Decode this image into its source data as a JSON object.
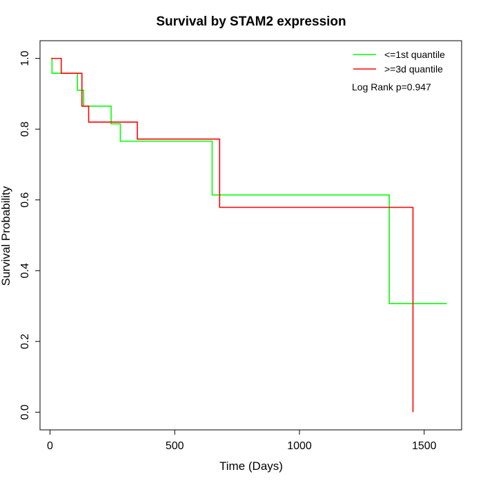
{
  "chart_data": {
    "type": "line",
    "title": "Survival by STAM2 expression",
    "xlabel": "Time (Days)",
    "ylabel": "Survival Probability",
    "xlim": [
      -40,
      1650
    ],
    "ylim": [
      -0.05,
      1.05
    ],
    "x_ticks": [
      0,
      500,
      1000,
      1500
    ],
    "y_ticks": [
      0.0,
      0.2,
      0.4,
      0.6,
      0.8,
      1.0
    ],
    "x_tick_labels": [
      "0",
      "500",
      "1000",
      "1500"
    ],
    "y_tick_labels": [
      "0.0",
      "0.2",
      "0.4",
      "0.6",
      "0.8",
      "1.0"
    ],
    "grid": false,
    "legend_position": "top-right",
    "annotation": "Log Rank p=0.947",
    "series": [
      {
        "name": "<=1st quantile",
        "color": "#00ff00",
        "steps": [
          [
            5,
            1.0
          ],
          [
            8,
            0.958
          ],
          [
            110,
            0.91
          ],
          [
            135,
            0.865
          ],
          [
            245,
            0.815
          ],
          [
            282,
            0.766
          ],
          [
            650,
            0.614
          ],
          [
            1360,
            0.307
          ]
        ],
        "end_x": 1590
      },
      {
        "name": ">=3d quantile",
        "color": "#ff0000",
        "steps": [
          [
            5,
            1.0
          ],
          [
            45,
            0.958
          ],
          [
            128,
            0.865
          ],
          [
            155,
            0.82
          ],
          [
            350,
            0.772
          ],
          [
            680,
            0.579
          ],
          [
            1455,
            0.0
          ]
        ],
        "end_x": 1455
      }
    ]
  }
}
